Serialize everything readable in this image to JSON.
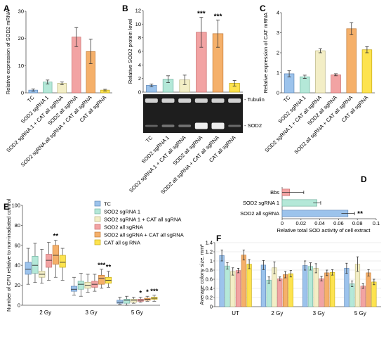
{
  "colors": {
    "TC": "#9cc3ec",
    "SOD2 sgRNA 1": "#b4e8d8",
    "SOD2 sgRNA 1 + CAT all sgRNA": "#f3eec6",
    "SOD2 all sgRNA": "#f2a3a3",
    "SOD2 all sgRNA + CAT all sgRNA": "#f5b06a",
    "CAT all sgRNA": "#fde34f"
  },
  "gel": {
    "band_top": "- Tubulin",
    "band_bottom": "- SOD2"
  },
  "chart_data": [
    {
      "panel": "A",
      "type": "bar",
      "categories": [
        "TC",
        "SOD2 sgRNA 1",
        "SOD2 sgRNA 1 + CAT all sgRNA",
        "SOD2 all sgRNA",
        "SOD2 sgRNA all sgRNA + CAT all sgRNA",
        "CAT all sgRNA"
      ],
      "values": [
        1.0,
        4.0,
        3.5,
        20.5,
        15.2,
        1.0
      ],
      "errors": [
        0.4,
        0.7,
        0.5,
        3.5,
        4.5,
        0.3
      ],
      "yticks": [
        "0",
        "10",
        "20",
        "30"
      ],
      "ylim": [
        0,
        30
      ],
      "ylabel": "Relative expression of SOD2 mRNA"
    },
    {
      "panel": "B",
      "type": "bar",
      "categories": [
        "TC",
        "SOD2 sgRNA 1",
        "SOD2 sgRNA 1 + CAT all sgRNA",
        "SOD2 all sgRNA",
        "SOD2 all sgRNA + CAT all sgRNA",
        "CAT all sgRNA"
      ],
      "values": [
        1.0,
        1.9,
        1.8,
        8.8,
        8.6,
        1.3
      ],
      "errors": [
        0.2,
        0.5,
        0.7,
        2.2,
        2.0,
        0.4
      ],
      "significance": [
        "",
        "",
        "",
        "***",
        "***",
        ""
      ],
      "yticks": [
        "0",
        "2",
        "4",
        "6",
        "8",
        "10",
        "12"
      ],
      "ylim": [
        0,
        12
      ],
      "ylabel": "Relative SOD2 protein level"
    },
    {
      "panel": "C",
      "type": "bar",
      "categories": [
        "TC",
        "SOD2 sgRNA 1",
        "SOD2 sgRNA 1 + CAT all sgRNA",
        "SOD2 all sgRNA",
        "SOD2 all sgRNA + CAT all sgRNA",
        "CAT all sgRNA"
      ],
      "values": [
        0.95,
        0.8,
        2.1,
        0.9,
        3.2,
        2.15
      ],
      "errors": [
        0.15,
        0.08,
        0.1,
        0.05,
        0.3,
        0.15
      ],
      "yticks": [
        "0",
        "1",
        "2",
        "3",
        "4"
      ],
      "ylim": [
        0,
        4
      ],
      "ylabel": "Relative expression of CAT mRNA"
    },
    {
      "panel": "D",
      "type": "bar",
      "orientation": "horizontal",
      "categories": [
        "Bbs",
        "SOD2 sgRNA 1",
        "SOD2 all sgRNA"
      ],
      "values": [
        0.008,
        0.037,
        0.07
      ],
      "errors": [
        0.015,
        0.004,
        0.007
      ],
      "significance": [
        "",
        "",
        "**"
      ],
      "xticks": [
        "0",
        "0.02",
        "0.04",
        "0.06",
        "0.08",
        "0.1"
      ],
      "xlim": [
        0,
        0.1
      ],
      "xlabel": "Relative total SOD activity of cell extract"
    },
    {
      "panel": "E",
      "type": "box",
      "categories": [
        "2 Gy",
        "3 Gy",
        "5 Gy"
      ],
      "legend": [
        "TC",
        "SOD2 sgRNA 1",
        "SOD2 sgRNA 1 + CAT all sgRNA",
        "SOD2 all sgRNA",
        "SOD2 all sgRNA + CAT all sgRNA",
        "CAT all sg RNA"
      ],
      "legend_position": "top-right",
      "boxes": [
        [
          [
            21,
            31,
            36,
            43,
            57
          ],
          [
            23,
            32,
            40,
            49,
            62
          ],
          [
            22,
            28,
            31,
            34,
            56
          ],
          [
            25,
            38,
            45,
            51,
            63
          ],
          [
            28,
            41,
            50,
            60,
            65
          ],
          [
            25,
            38,
            43,
            50,
            57
          ]
        ],
        [
          [
            10,
            14,
            16,
            19,
            28
          ],
          [
            9,
            16,
            21,
            24,
            32
          ],
          [
            13,
            17,
            20,
            23,
            31
          ],
          [
            14,
            18,
            21,
            24,
            31
          ],
          [
            17,
            21,
            27,
            30,
            36
          ],
          [
            18,
            22,
            25,
            28,
            34
          ]
        ],
        [
          [
            1,
            2,
            3,
            5,
            8
          ],
          [
            0,
            2,
            5,
            6,
            9
          ],
          [
            2,
            3,
            5,
            6,
            8
          ],
          [
            3,
            4,
            5,
            6,
            8
          ],
          [
            4,
            5,
            6,
            7,
            9
          ],
          [
            4,
            6,
            7,
            8,
            10
          ]
        ]
      ],
      "significance": [
        [
          "",
          "",
          "",
          "",
          "**",
          ""
        ],
        [
          "",
          "",
          "",
          "",
          "***",
          "**"
        ],
        [
          "",
          "",
          "",
          "*",
          "*",
          "***"
        ]
      ],
      "yticks": [
        "0",
        "20",
        "40",
        "60",
        "80",
        "100"
      ],
      "ylim": [
        0,
        100
      ],
      "ylabel": "Number of CFU relative to non-irradiated control"
    },
    {
      "panel": "F",
      "type": "bar",
      "categories": [
        "UT",
        "2 Gy",
        "3 Gy",
        "5 Gy"
      ],
      "series": [
        {
          "name": "TC",
          "values": [
            1.12,
            0.91,
            0.9,
            0.84
          ],
          "errors": [
            0.12,
            0.1,
            0.1,
            0.11
          ]
        },
        {
          "name": "SOD2 sgRNA 1",
          "values": [
            0.89,
            0.58,
            0.88,
            0.5
          ],
          "errors": [
            0.07,
            0.07,
            0.08,
            0.06
          ]
        },
        {
          "name": "SOD2 sgRNA 1 + CAT all sgRNA",
          "values": [
            0.77,
            0.85,
            0.84,
            0.93
          ],
          "errors": [
            0.08,
            0.13,
            0.1,
            0.16
          ]
        },
        {
          "name": "SOD2 all sgRNA",
          "values": [
            0.79,
            0.61,
            0.61,
            0.45
          ],
          "errors": [
            0.05,
            0.04,
            0.05,
            0.05
          ]
        },
        {
          "name": "SOD2 all sgRNA + CAT all sgRNA",
          "values": [
            1.13,
            0.7,
            0.74,
            0.74
          ],
          "errors": [
            0.11,
            0.07,
            0.06,
            0.07
          ]
        },
        {
          "name": "CAT all sgRNA",
          "values": [
            0.93,
            0.72,
            0.75,
            0.54
          ],
          "errors": [
            0.1,
            0.07,
            0.06,
            0.06
          ]
        }
      ],
      "yticks": [
        "0",
        "0.2",
        "0.4",
        "0.6",
        "0.8",
        "1",
        "1.2",
        "1.4"
      ],
      "ylim": [
        0,
        1.4
      ],
      "ylabel": "Average colony size, mm²"
    }
  ],
  "panel_labels": [
    "A",
    "B",
    "C",
    "D",
    "E",
    "F"
  ]
}
